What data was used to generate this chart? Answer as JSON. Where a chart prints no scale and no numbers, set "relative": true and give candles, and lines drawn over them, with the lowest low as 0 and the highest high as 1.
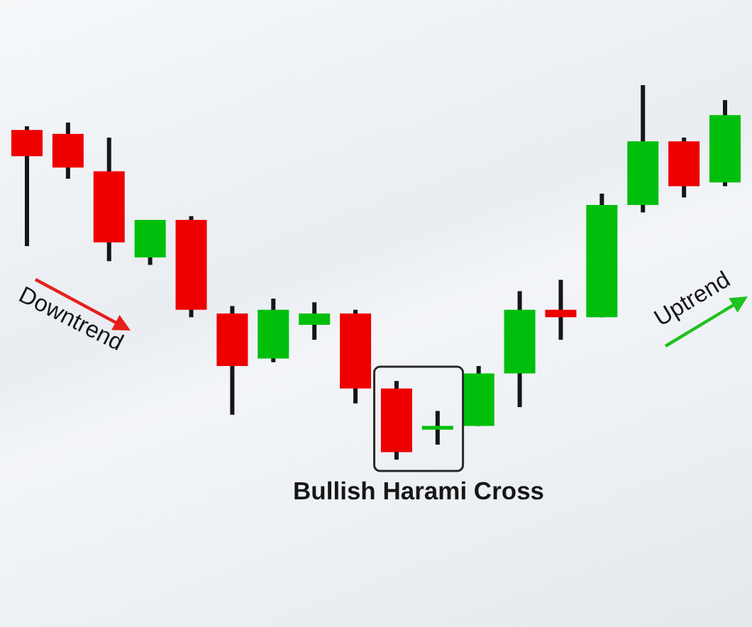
{
  "chart_data": {
    "type": "candlestick",
    "relative": true,
    "categories": [
      null,
      null,
      null,
      null,
      null,
      null,
      null,
      null,
      null,
      null,
      null,
      null,
      null,
      null,
      null,
      null,
      null,
      null
    ],
    "ohlc": [
      [
        0.88,
        0.89,
        0.57,
        0.81
      ],
      [
        0.87,
        0.9,
        0.75,
        0.78
      ],
      [
        0.77,
        0.86,
        0.53,
        0.58
      ],
      [
        0.54,
        0.64,
        0.52,
        0.64
      ],
      [
        0.64,
        0.65,
        0.38,
        0.4
      ],
      [
        0.39,
        0.41,
        0.12,
        0.25
      ],
      [
        0.27,
        0.43,
        0.26,
        0.4
      ],
      [
        0.36,
        0.42,
        0.32,
        0.39
      ],
      [
        0.39,
        0.4,
        0.15,
        0.19
      ],
      [
        0.19,
        0.21,
        0.0,
        0.02
      ],
      [
        0.08,
        0.13,
        0.04,
        0.09
      ],
      [
        0.09,
        0.25,
        0.09,
        0.23
      ],
      [
        0.23,
        0.45,
        0.14,
        0.4
      ],
      [
        0.4,
        0.48,
        0.32,
        0.38
      ],
      [
        0.38,
        0.71,
        0.38,
        0.68
      ],
      [
        0.68,
        1.0,
        0.66,
        0.85
      ],
      [
        0.85,
        0.86,
        0.7,
        0.73
      ],
      [
        0.74,
        0.96,
        0.73,
        0.92
      ]
    ],
    "colors": [
      "#ee0000",
      "#ee0000",
      "#ee0000",
      "#00bf0c",
      "#ee0000",
      "#ee0000",
      "#00bf0c",
      "#00bf0c",
      "#ee0000",
      "#ee0000",
      "#00bf0c",
      "#00bf0c",
      "#00bf0c",
      "#ee0000",
      "#00bf0c",
      "#00bf0c",
      "#ee0000",
      "#00bf0c"
    ],
    "annotations": [
      "Downtrend",
      "Uptrend",
      "Bullish Harami Cross"
    ]
  }
}
